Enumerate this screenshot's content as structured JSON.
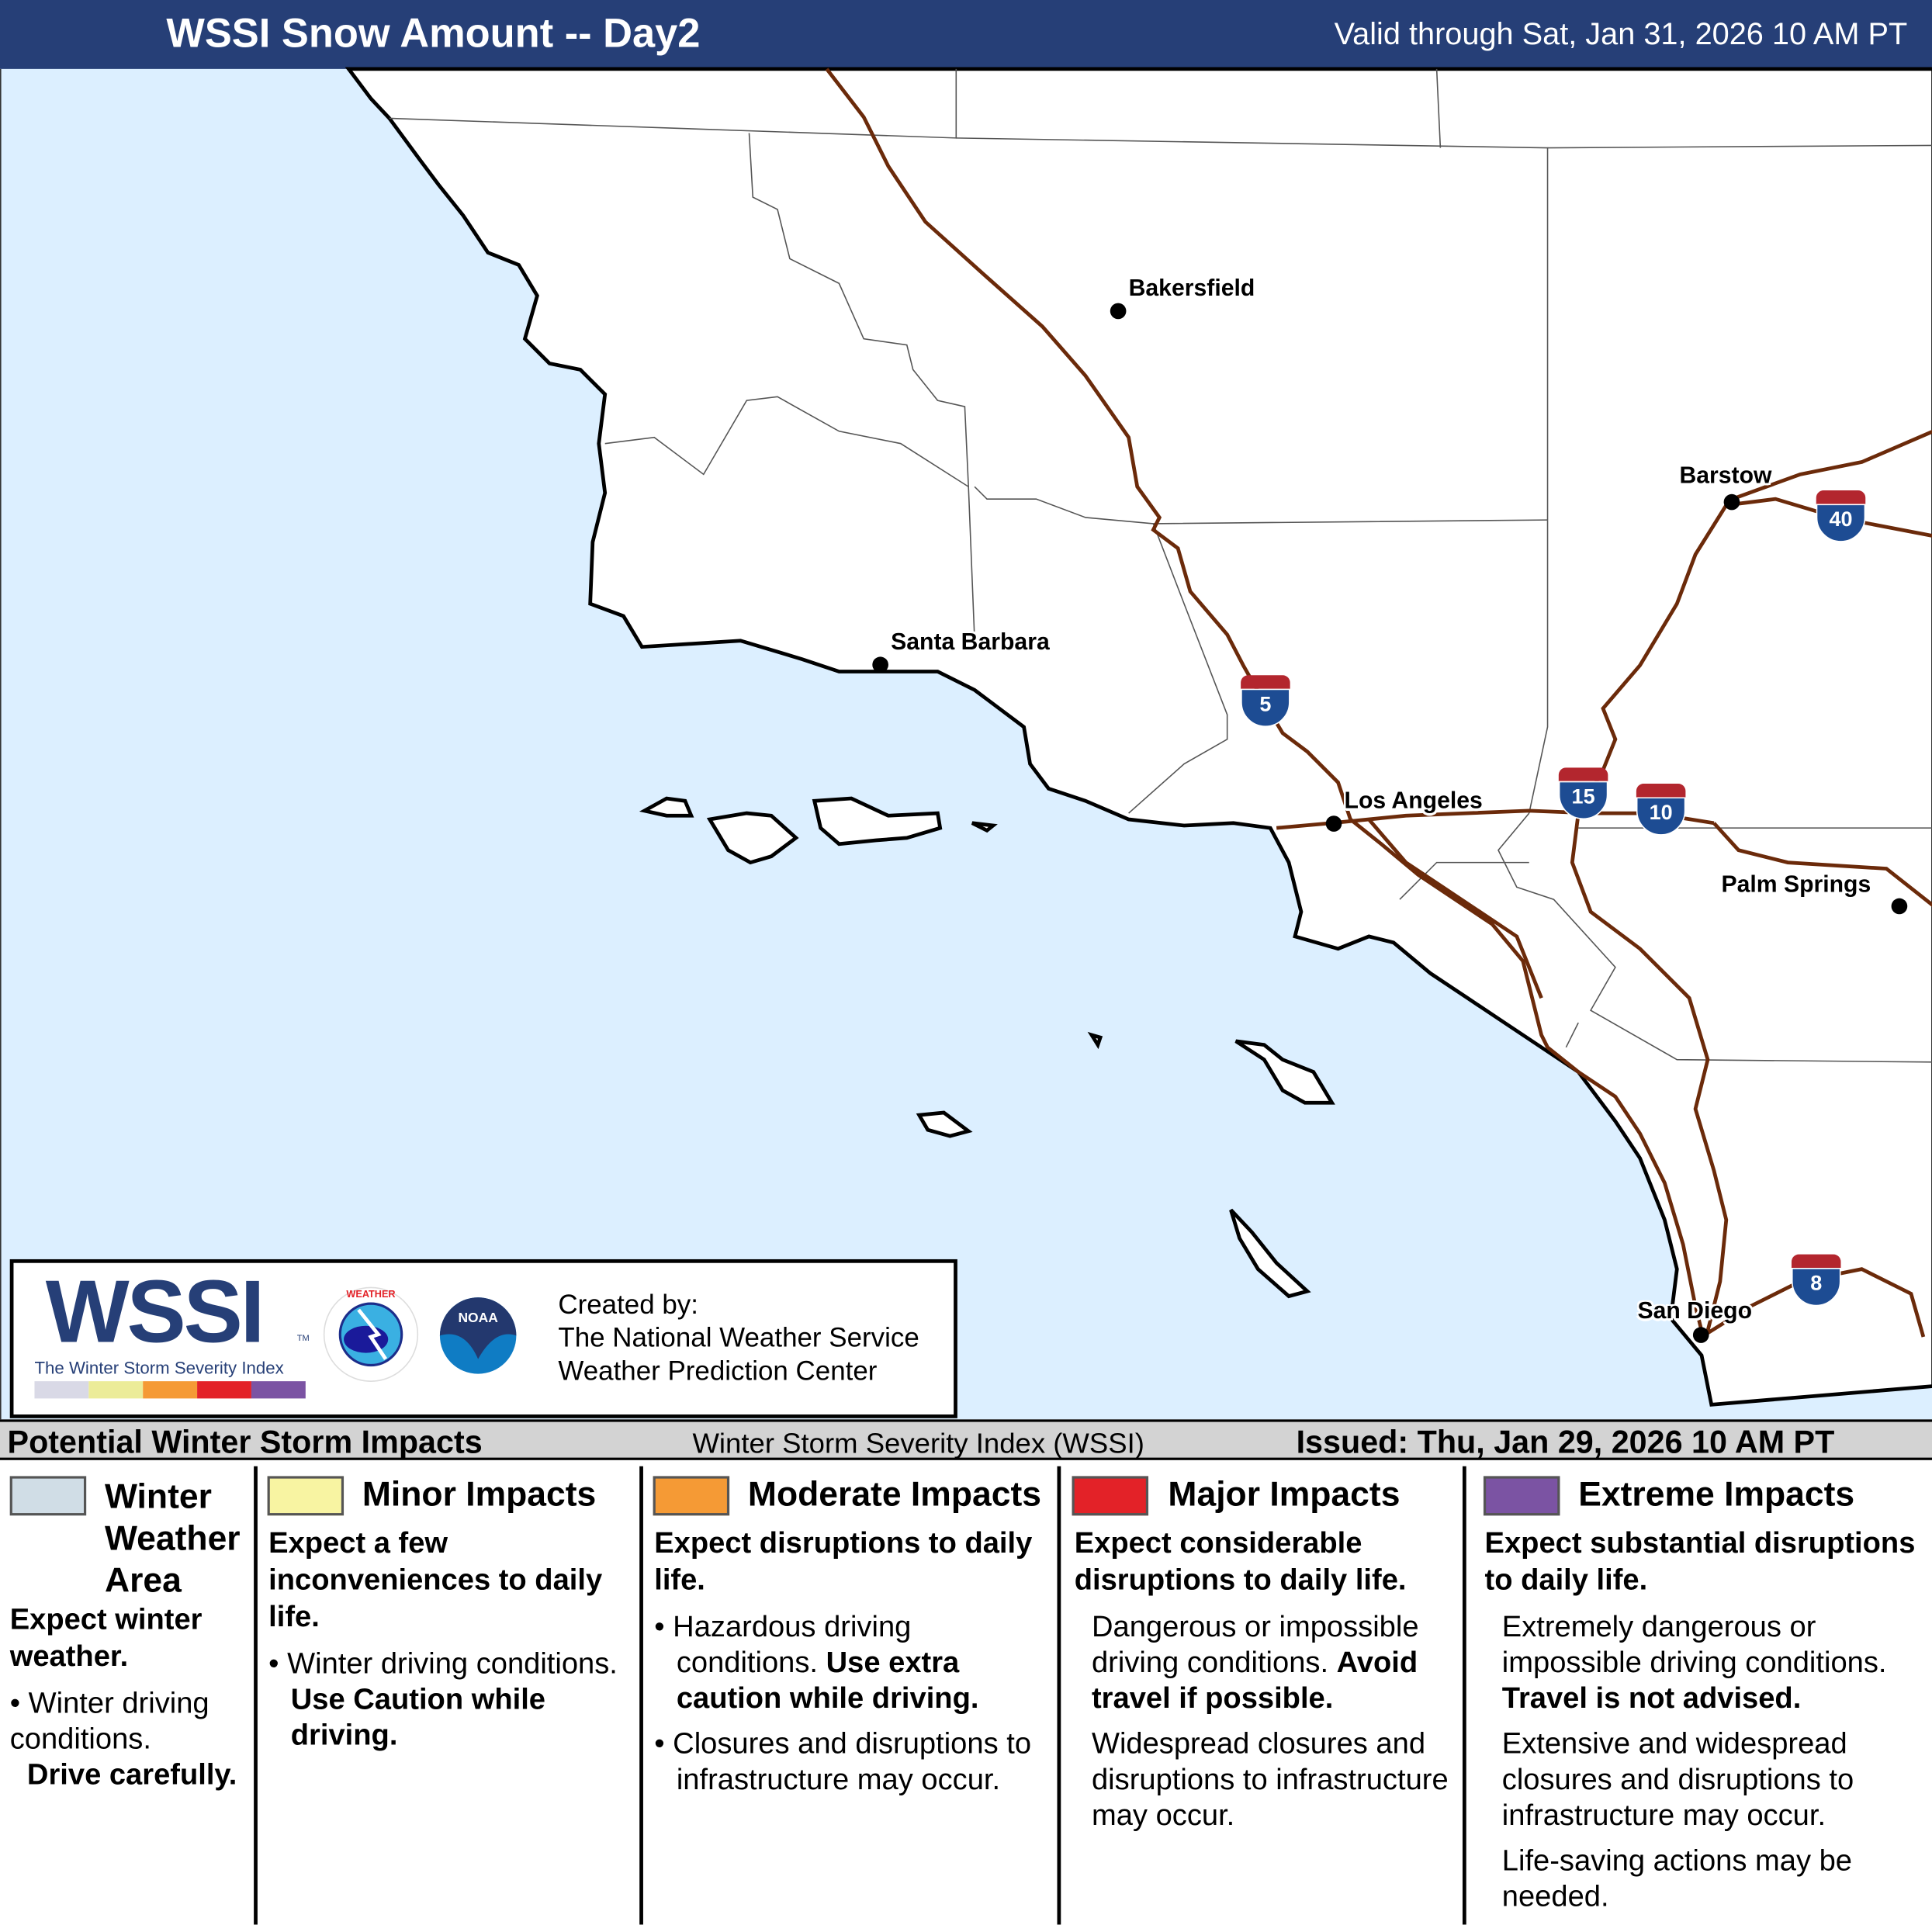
{
  "header": {
    "title": "WSSI Snow Amount -- Day2",
    "valid": "Valid through Sat, Jan 31, 2026 10 AM PT"
  },
  "map": {
    "cities": [
      "Bakersfield",
      "Barstow",
      "Santa Barbara",
      "Los Angeles",
      "Palm Springs",
      "San Diego"
    ],
    "interstates": [
      "5",
      "15",
      "10",
      "40",
      "8"
    ],
    "colors": {
      "ocean": "#dcefff",
      "land": "#ffffff",
      "highway": "#6b2a0a"
    }
  },
  "logo": {
    "wssi": "WSSI",
    "tm": "TM",
    "subtitle": "The Winter Storm Severity Index",
    "nws": "NATIONAL WEATHER SERVICE",
    "noaa": "NOAA",
    "created_by": "Created by:",
    "org1": "The National Weather Service",
    "org2": "Weather Prediction Center",
    "scale_colors": [
      "#d9d9e6",
      "#ecec99",
      "#f59a35",
      "#e32228",
      "#7b53a3"
    ]
  },
  "band": {
    "left": "Potential Winter Storm Impacts",
    "middle": "Winter Storm Severity Index (WSSI)",
    "right": "Issued: Thu, Jan 29, 2026 10 AM PT"
  },
  "legend": [
    {
      "title": "Winter Weather Area",
      "color": "#d0dde6",
      "summary": "Expect winter weather.",
      "detail": "Winter driving conditions.",
      "action": "Drive carefully."
    },
    {
      "title": "Minor Impacts",
      "color": "#f8f4a2",
      "summary": "Expect a few inconveniences to daily life.",
      "detail": "Winter driving conditions.",
      "action": "Use Caution while driving."
    },
    {
      "title": "Moderate Impacts",
      "color": "#f59a35",
      "summary": "Expect disruptions to daily life.",
      "detail": "Hazardous driving conditions.",
      "action": "Use extra caution while driving.",
      "detail2": "Closures and disruptions to infrastructure may occur."
    },
    {
      "title": "Major Impacts",
      "color": "#e32228",
      "summary": "Expect considerable disruptions to daily life.",
      "detail": "Dangerous or impossible driving conditions.",
      "action": "Avoid travel if possible.",
      "detail2": "Widespread closures and disruptions to infrastructure may occur."
    },
    {
      "title": "Extreme Impacts",
      "color": "#7b53a3",
      "summary": "Expect substantial disruptions to daily life.",
      "detail": "Extremely dangerous or impossible driving conditions.",
      "action": "Travel is not advised.",
      "detail2": "Extensive and widespread closures and disruptions to infrastructure may occur.",
      "detail3": "Life-saving actions may be needed."
    }
  ]
}
